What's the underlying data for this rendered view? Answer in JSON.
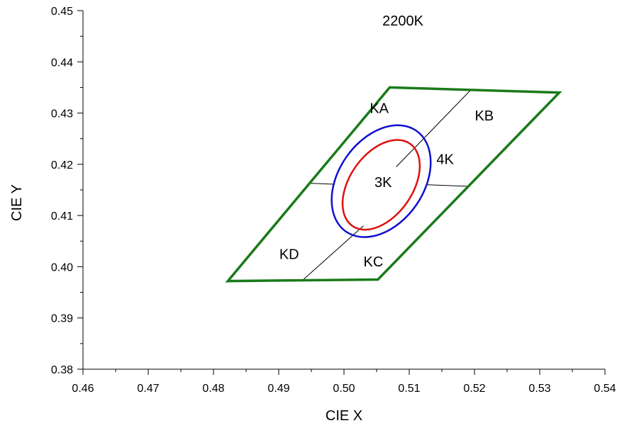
{
  "chart_data": {
    "type": "scatter",
    "title": "2200K",
    "xlabel": "CIE X",
    "ylabel": "CIE Y",
    "xlim": [
      0.46,
      0.54
    ],
    "ylim": [
      0.38,
      0.45
    ],
    "x_ticks": [
      0.46,
      0.47,
      0.48,
      0.49,
      0.5,
      0.51,
      0.52,
      0.53,
      0.54
    ],
    "x_tick_labels": [
      "0.46",
      "0.47",
      "0.48",
      "0.49",
      "0.50",
      "0.51",
      "0.52",
      "0.53",
      "0.54"
    ],
    "y_ticks": [
      0.38,
      0.39,
      0.4,
      0.41,
      0.42,
      0.43,
      0.44,
      0.45
    ],
    "y_tick_labels": [
      "0.38",
      "0.39",
      "0.40",
      "0.41",
      "0.42",
      "0.43",
      "0.44",
      "0.45"
    ],
    "grid": false,
    "colors": {
      "boundary": "#1a7a1a",
      "ellipse_4k": "#1010d0",
      "ellipse_3k": "#e01010",
      "divider": "#000000"
    },
    "boundary": [
      {
        "x": 0.507,
        "y": 0.435
      },
      {
        "x": 0.533,
        "y": 0.434
      },
      {
        "x": 0.5052,
        "y": 0.3975
      },
      {
        "x": 0.4822,
        "y": 0.3972
      }
    ],
    "dividers": [
      {
        "from": {
          "x": 0.5195,
          "y": 0.4346
        },
        "to": {
          "x": 0.508,
          "y": 0.4195
        }
      },
      {
        "from": {
          "x": 0.503,
          "y": 0.408
        },
        "to": {
          "x": 0.4936,
          "y": 0.3973
        }
      },
      {
        "from": {
          "x": 0.4947,
          "y": 0.4163
        },
        "to": {
          "x": 0.4986,
          "y": 0.4161
        }
      },
      {
        "from": {
          "x": 0.5128,
          "y": 0.416
        },
        "to": {
          "x": 0.5193,
          "y": 0.4157
        }
      }
    ],
    "ellipses": [
      {
        "name": "4K",
        "center": {
          "x": 0.5057,
          "y": 0.4167
        },
        "rx": 0.0065,
        "ry": 0.012,
        "rotation_deg": 35
      },
      {
        "name": "3K",
        "center": {
          "x": 0.5057,
          "y": 0.416
        },
        "rx": 0.0048,
        "ry": 0.0098,
        "rotation_deg": 35
      }
    ],
    "annotations": [
      {
        "text": "KA",
        "x": 0.5054,
        "y": 0.431
      },
      {
        "text": "KB",
        "x": 0.5215,
        "y": 0.4295
      },
      {
        "text": "4K",
        "x": 0.5155,
        "y": 0.421
      },
      {
        "text": "3K",
        "x": 0.506,
        "y": 0.4165
      },
      {
        "text": "KD",
        "x": 0.4916,
        "y": 0.4025
      },
      {
        "text": "KC",
        "x": 0.5045,
        "y": 0.401
      }
    ]
  }
}
